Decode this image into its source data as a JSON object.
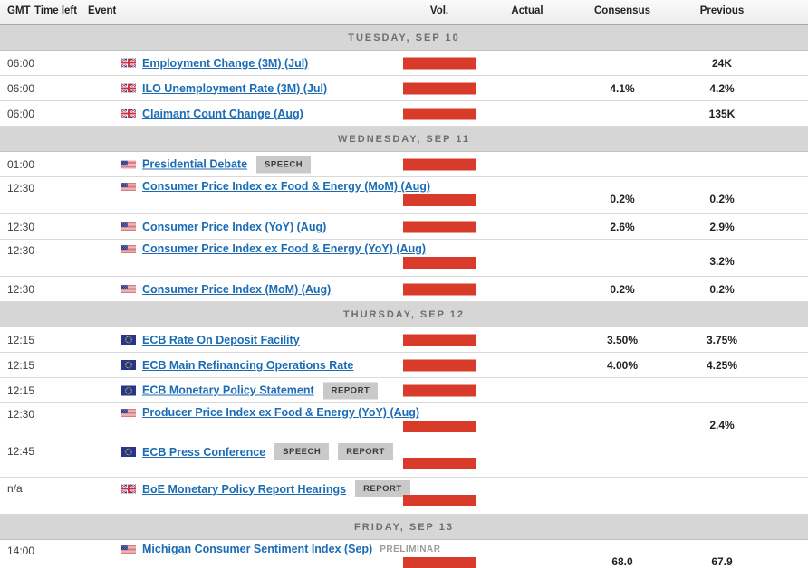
{
  "header": {
    "gmt": "GMT",
    "time_left": "Time left",
    "event": "Event",
    "vol": "Vol.",
    "actual": "Actual",
    "consensus": "Consensus",
    "previous": "Previous"
  },
  "colors": {
    "volatility_bar_red": "#d93b2b",
    "link_blue": "#1b6cb5",
    "day_separator_bg": "#d6d6d6",
    "badge_bg": "#c9c9c9"
  },
  "days": [
    {
      "label": "TUESDAY, SEP 10",
      "events": [
        {
          "time": "06:00",
          "country": "GB",
          "title": "Employment Change (3M) (Jul)",
          "badges": [],
          "suffix": "",
          "two_line": false,
          "actual": "",
          "consensus": "",
          "previous": "24K"
        },
        {
          "time": "06:00",
          "country": "GB",
          "title": "ILO Unemployment Rate (3M) (Jul)",
          "badges": [],
          "suffix": "",
          "two_line": false,
          "actual": "",
          "consensus": "4.1%",
          "previous": "4.2%"
        },
        {
          "time": "06:00",
          "country": "GB",
          "title": "Claimant Count Change (Aug)",
          "badges": [],
          "suffix": "",
          "two_line": false,
          "actual": "",
          "consensus": "",
          "previous": "135K"
        }
      ]
    },
    {
      "label": "WEDNESDAY, SEP 11",
      "events": [
        {
          "time": "01:00",
          "country": "US",
          "title": "Presidential Debate",
          "badges": [
            "SPEECH"
          ],
          "suffix": "",
          "two_line": false,
          "actual": "",
          "consensus": "",
          "previous": ""
        },
        {
          "time": "12:30",
          "country": "US",
          "title": "Consumer Price Index ex Food & Energy (MoM) (Aug)",
          "badges": [],
          "suffix": "",
          "two_line": true,
          "actual": "",
          "consensus": "0.2%",
          "previous": "0.2%"
        },
        {
          "time": "12:30",
          "country": "US",
          "title": "Consumer Price Index (YoY) (Aug)",
          "badges": [],
          "suffix": "",
          "two_line": false,
          "actual": "",
          "consensus": "2.6%",
          "previous": "2.9%"
        },
        {
          "time": "12:30",
          "country": "US",
          "title": "Consumer Price Index ex Food & Energy (YoY) (Aug)",
          "badges": [],
          "suffix": "",
          "two_line": true,
          "actual": "",
          "consensus": "",
          "previous": "3.2%"
        },
        {
          "time": "12:30",
          "country": "US",
          "title": "Consumer Price Index (MoM) (Aug)",
          "badges": [],
          "suffix": "",
          "two_line": false,
          "actual": "",
          "consensus": "0.2%",
          "previous": "0.2%"
        }
      ]
    },
    {
      "label": "THURSDAY, SEP 12",
      "events": [
        {
          "time": "12:15",
          "country": "EU",
          "title": "ECB Rate On Deposit Facility",
          "badges": [],
          "suffix": "",
          "two_line": false,
          "actual": "",
          "consensus": "3.50%",
          "previous": "3.75%"
        },
        {
          "time": "12:15",
          "country": "EU",
          "title": "ECB Main Refinancing Operations Rate",
          "badges": [],
          "suffix": "",
          "two_line": false,
          "actual": "",
          "consensus": "4.00%",
          "previous": "4.25%"
        },
        {
          "time": "12:15",
          "country": "EU",
          "title": "ECB Monetary Policy Statement",
          "badges": [
            "REPORT"
          ],
          "suffix": "",
          "two_line": false,
          "actual": "",
          "consensus": "",
          "previous": ""
        },
        {
          "time": "12:30",
          "country": "US",
          "title": "Producer Price Index ex Food & Energy (YoY) (Aug)",
          "badges": [],
          "suffix": "",
          "two_line": true,
          "actual": "",
          "consensus": "",
          "previous": "2.4%"
        },
        {
          "time": "12:45",
          "country": "EU",
          "title": "ECB Press Conference",
          "badges": [
            "SPEECH",
            "REPORT"
          ],
          "suffix": "",
          "two_line": true,
          "actual": "",
          "consensus": "",
          "previous": ""
        },
        {
          "time": "n/a",
          "country": "GB",
          "title": "BoE Monetary Policy Report Hearings",
          "badges": [
            "REPORT"
          ],
          "suffix": "",
          "two_line": true,
          "actual": "",
          "consensus": "",
          "previous": ""
        }
      ]
    },
    {
      "label": "FRIDAY, SEP 13",
      "events": [
        {
          "time": "14:00",
          "country": "US",
          "title": "Michigan Consumer Sentiment Index (Sep)",
          "badges": [],
          "suffix": "PRELIMINAR",
          "two_line": true,
          "actual": "",
          "consensus": "68.0",
          "previous": "67.9"
        }
      ]
    }
  ]
}
